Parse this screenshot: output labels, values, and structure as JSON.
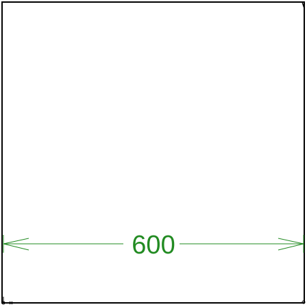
{
  "drawing": {
    "dimension_label": "600",
    "colors": {
      "outline": "#000000",
      "dimension": "#228b22",
      "background": "#ffffff"
    },
    "icons": {
      "origin_marker": "origin-marker-icon"
    }
  }
}
